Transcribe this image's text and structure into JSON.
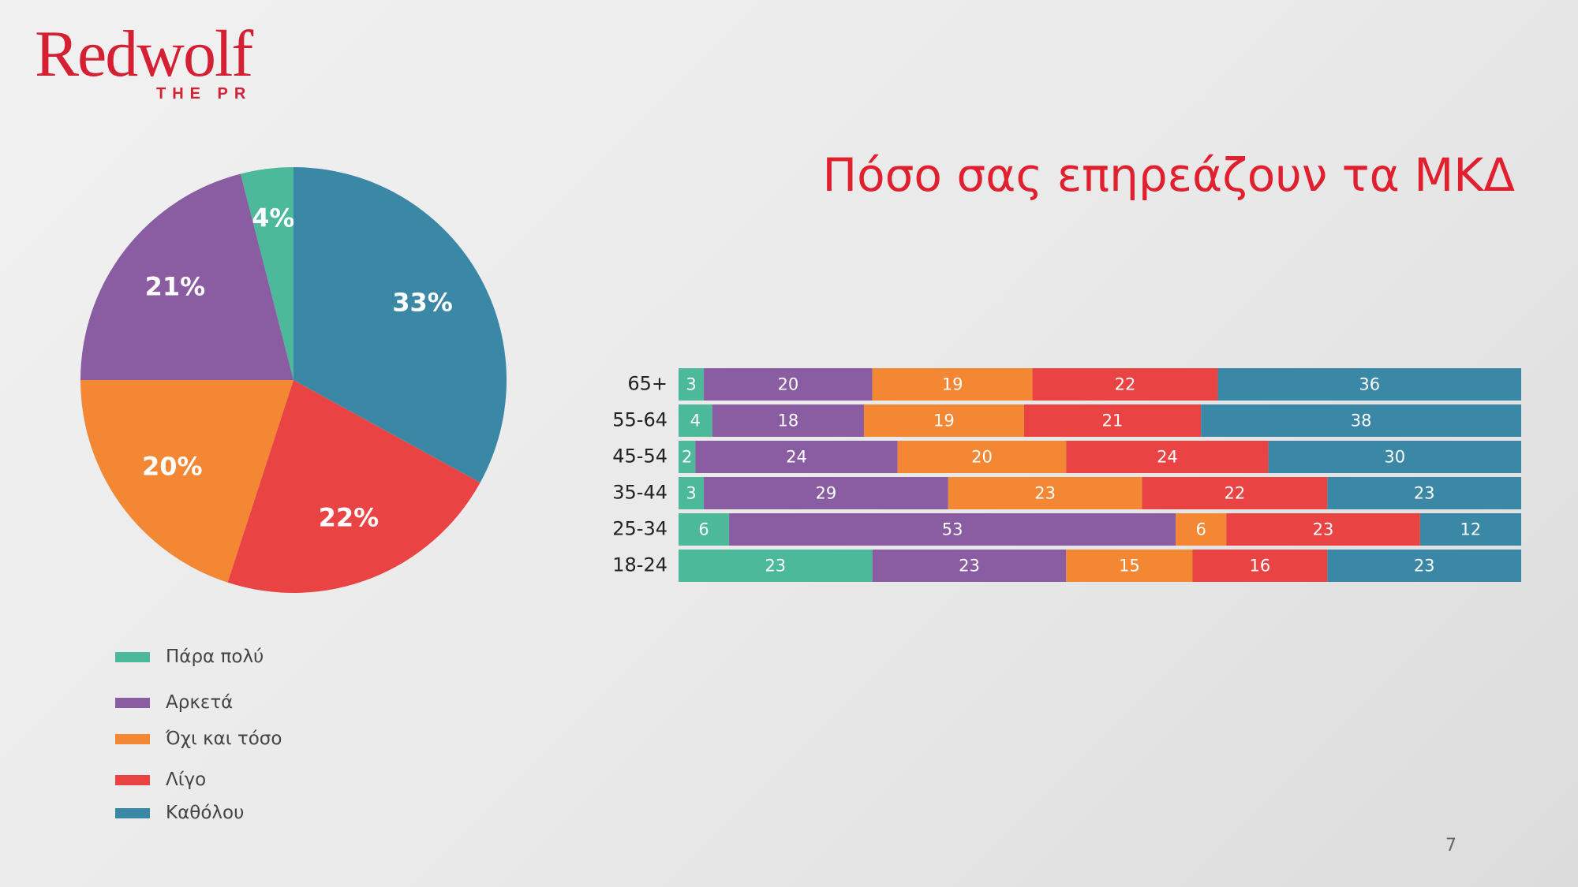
{
  "logo": {
    "word": "Redwolf",
    "sub": "THE PR"
  },
  "title": "Πόσο σας επηρεάζουν τα ΜΚΔ",
  "page_number": "7",
  "legend": [
    {
      "label": "Πάρα πολύ",
      "color": "#4bb99a"
    },
    {
      "label": "Αρκετά",
      "color": "#8a5ca1"
    },
    {
      "label": "Όχι και τόσο",
      "color": "#f38733"
    },
    {
      "label": "Λίγο",
      "color": "#e94443"
    },
    {
      "label": "Καθόλου",
      "color": "#3a88a6"
    }
  ],
  "chart_data": [
    {
      "type": "pie",
      "categories": [
        "Πάρα πολύ",
        "Αρκετά",
        "Όχι και τόσο",
        "Λίγο",
        "Καθόλου"
      ],
      "values": [
        4,
        21,
        20,
        22,
        33
      ],
      "labels": [
        "4%",
        "21%",
        "20%",
        "22%",
        "33%"
      ],
      "colors": [
        "#4bb99a",
        "#8a5ca1",
        "#f38733",
        "#e94443",
        "#3a88a6"
      ]
    },
    {
      "type": "bar",
      "orientation": "horizontal",
      "stacked": true,
      "categories": [
        "65+",
        "55-64",
        "45-54",
        "35-44",
        "25-34",
        "18-24"
      ],
      "series": [
        {
          "name": "Πάρα πολύ",
          "color": "#4bb99a",
          "values": [
            3,
            4,
            2,
            3,
            6,
            23
          ]
        },
        {
          "name": "Αρκετά",
          "color": "#8a5ca1",
          "values": [
            20,
            18,
            24,
            29,
            53,
            23
          ]
        },
        {
          "name": "Όχι και τόσο",
          "color": "#f38733",
          "values": [
            19,
            19,
            20,
            23,
            6,
            15
          ]
        },
        {
          "name": "Λίγο",
          "color": "#e94443",
          "values": [
            22,
            21,
            24,
            22,
            23,
            16
          ]
        },
        {
          "name": "Καθόλου",
          "color": "#3a88a6",
          "values": [
            36,
            38,
            30,
            23,
            12,
            23
          ]
        }
      ]
    }
  ]
}
